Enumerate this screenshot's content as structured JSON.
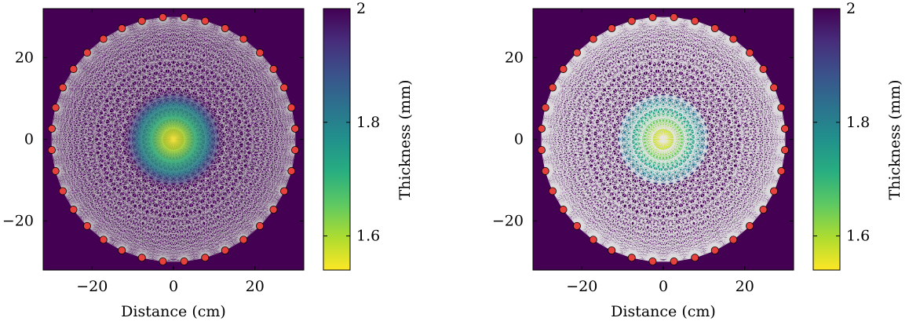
{
  "chart_data": [
    {
      "type": "heatmap",
      "title": "",
      "xlabel": "Distance (cm)",
      "ylabel": "",
      "xlim": [
        -32,
        32
      ],
      "ylim": [
        -32,
        32
      ],
      "x_ticks": [
        "−20",
        "0",
        "20"
      ],
      "x_tick_values": [
        -20,
        0,
        20
      ],
      "y_ticks": [
        "−20",
        "0",
        "20"
      ],
      "y_tick_values": [
        -20,
        0,
        20
      ],
      "grid": false,
      "colormap": "viridis_r",
      "colorbar": {
        "label": "Thickness (mm)",
        "range": [
          1.54,
          2.0
        ],
        "ticks": [
          "1.6",
          "1.8",
          "2"
        ],
        "tick_values": [
          1.6,
          1.8,
          2.0
        ]
      },
      "field": {
        "shape": "radial",
        "background_thickness": 2.0,
        "center_thickness": 1.55,
        "radius": 11,
        "edge": "diffuse"
      },
      "sources": {
        "count": 36,
        "ring_radius": 30,
        "marker_color": "#e8413d",
        "chord_color": "#c8c8c8"
      }
    },
    {
      "type": "heatmap",
      "title": "",
      "xlabel": "Distance (cm)",
      "ylabel": "",
      "xlim": [
        -32,
        32
      ],
      "ylim": [
        -32,
        32
      ],
      "x_ticks": [
        "−20",
        "0",
        "20"
      ],
      "x_tick_values": [
        -20,
        0,
        20
      ],
      "y_ticks": [
        "−20",
        "0",
        "20"
      ],
      "y_tick_values": [
        -20,
        0,
        20
      ],
      "grid": false,
      "colormap": "viridis_r",
      "colorbar": {
        "label": "Thickness (mm)",
        "range": [
          1.54,
          2.0
        ],
        "ticks": [
          "1.6",
          "1.8",
          "2"
        ],
        "tick_values": [
          1.6,
          1.8,
          2.0
        ]
      },
      "field": {
        "shape": "radial",
        "background_thickness": 2.0,
        "center_thickness": 1.55,
        "radius": 11,
        "edge": "sharp"
      },
      "sources": {
        "count": 36,
        "ring_radius": 30,
        "marker_color": "#e8413d",
        "chord_color": "#e6e6e6"
      }
    }
  ]
}
